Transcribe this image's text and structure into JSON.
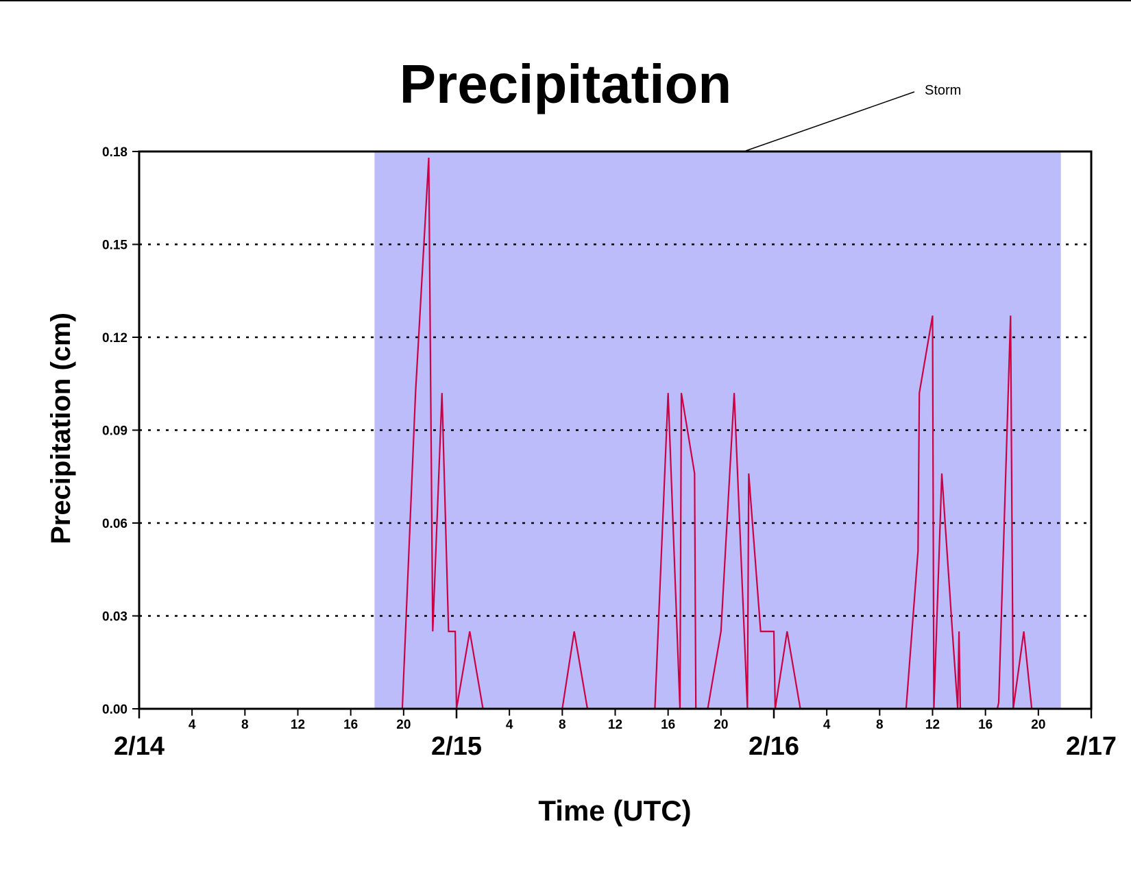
{
  "chart_data": {
    "type": "line",
    "title": "Precipitation",
    "xlabel": "Time (UTC)",
    "ylabel": "Precipitation (cm)",
    "xlim_hours": [
      0,
      72
    ],
    "ylim": [
      0,
      0.18
    ],
    "y_ticks": [
      "0.00",
      "0.03",
      "0.06",
      "0.09",
      "0.12",
      "0.15",
      "0.18"
    ],
    "y_tick_values": [
      0,
      0.03,
      0.06,
      0.09,
      0.12,
      0.15,
      0.18
    ],
    "x_minor_ticks": [
      {
        "hour": 4,
        "label": "4"
      },
      {
        "hour": 8,
        "label": "8"
      },
      {
        "hour": 12,
        "label": "12"
      },
      {
        "hour": 16,
        "label": "16"
      },
      {
        "hour": 20,
        "label": "20"
      },
      {
        "hour": 28,
        "label": "4"
      },
      {
        "hour": 32,
        "label": "8"
      },
      {
        "hour": 36,
        "label": "12"
      },
      {
        "hour": 40,
        "label": "16"
      },
      {
        "hour": 44,
        "label": "20"
      },
      {
        "hour": 52,
        "label": "4"
      },
      {
        "hour": 56,
        "label": "8"
      },
      {
        "hour": 60,
        "label": "12"
      },
      {
        "hour": 64,
        "label": "16"
      },
      {
        "hour": 68,
        "label": "20"
      }
    ],
    "x_day_ticks": [
      {
        "hour": 0,
        "label": "2/14"
      },
      {
        "hour": 24,
        "label": "2/15"
      },
      {
        "hour": 48,
        "label": "2/16"
      },
      {
        "hour": 72,
        "label": "2/17"
      }
    ],
    "grid": "horizontal dotted",
    "annotation": {
      "text": "Storm",
      "shaded_range_hours": [
        17.8,
        69.7
      ],
      "color": "#bcbcfa"
    },
    "series": [
      {
        "color": "#cc0044",
        "points": [
          [
            0,
            0
          ],
          [
            19.9,
            0
          ],
          [
            20.9,
            0.102
          ],
          [
            21.9,
            0.178
          ],
          [
            22.2,
            0.025
          ],
          [
            22.9,
            0.102
          ],
          [
            23.4,
            0.025
          ],
          [
            23.9,
            0.025
          ],
          [
            24.0,
            0
          ],
          [
            25.0,
            0.025
          ],
          [
            26.0,
            0
          ],
          [
            32.0,
            0
          ],
          [
            32.9,
            0.025
          ],
          [
            33.9,
            0
          ],
          [
            39.0,
            0
          ],
          [
            40.0,
            0.102
          ],
          [
            40.9,
            0
          ],
          [
            41.0,
            0.102
          ],
          [
            42.0,
            0.076
          ],
          [
            42.1,
            0
          ],
          [
            43.0,
            0
          ],
          [
            44.0,
            0.025
          ],
          [
            45.0,
            0.102
          ],
          [
            46.0,
            0
          ],
          [
            46.1,
            0.076
          ],
          [
            47.0,
            0.025
          ],
          [
            48.0,
            0.025
          ],
          [
            48.1,
            0
          ],
          [
            49.0,
            0.025
          ],
          [
            50.0,
            0
          ],
          [
            58.0,
            0
          ],
          [
            58.9,
            0.051
          ],
          [
            59.0,
            0.102
          ],
          [
            60.0,
            0.127
          ],
          [
            60.1,
            0
          ],
          [
            60.7,
            0.076
          ],
          [
            61.5,
            0.025
          ],
          [
            61.9,
            0
          ],
          [
            62.0,
            0.025
          ],
          [
            62.1,
            0
          ],
          [
            64.9,
            0
          ],
          [
            65.0,
            0.002
          ],
          [
            65.9,
            0.127
          ],
          [
            66.1,
            0
          ],
          [
            66.9,
            0.025
          ],
          [
            67.5,
            0
          ],
          [
            72,
            0
          ]
        ]
      }
    ]
  }
}
